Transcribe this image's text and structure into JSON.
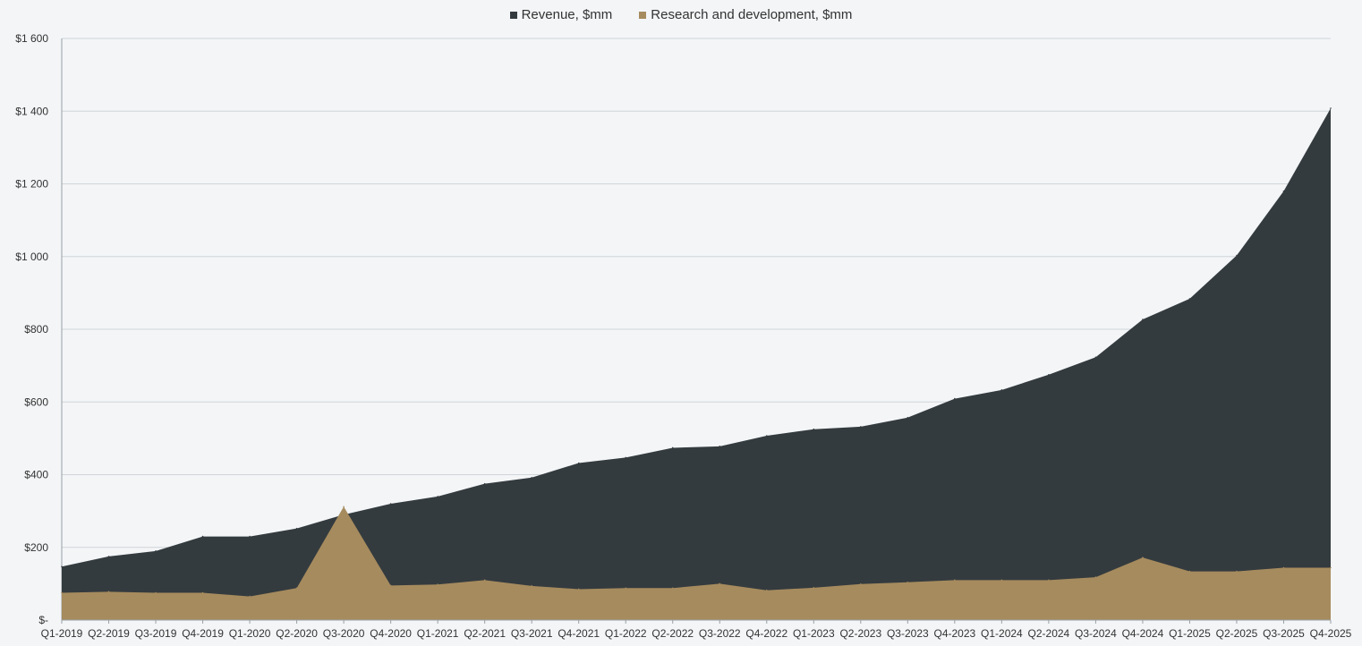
{
  "chart_data": {
    "type": "area",
    "categories": [
      "Q1-2019",
      "Q2-2019",
      "Q3-2019",
      "Q4-2019",
      "Q1-2020",
      "Q2-2020",
      "Q3-2020",
      "Q4-2020",
      "Q1-2021",
      "Q2-2021",
      "Q3-2021",
      "Q4-2021",
      "Q1-2022",
      "Q2-2022",
      "Q3-2022",
      "Q4-2022",
      "Q1-2023",
      "Q2-2023",
      "Q3-2023",
      "Q4-2023",
      "Q1-2024",
      "Q2-2024",
      "Q3-2024",
      "Q4-2024",
      "Q1-2025",
      "Q2-2025",
      "Q3-2025",
      "Q4-2025"
    ],
    "series": [
      {
        "name": "Revenue, $mm",
        "color": "#343b3f",
        "values": [
          147,
          175,
          190,
          230,
          230,
          252,
          290,
          320,
          340,
          375,
          392,
          432,
          447,
          474,
          478,
          507,
          525,
          532,
          557,
          609,
          633,
          675,
          723,
          827,
          884,
          1003,
          1180,
          1408
        ]
      },
      {
        "name": "Research and development, $mm",
        "color": "#a68b5e",
        "values": [
          75,
          78,
          75,
          75,
          65,
          88,
          312,
          95,
          98,
          110,
          94,
          85,
          88,
          88,
          100,
          82,
          89,
          99,
          104,
          110,
          110,
          110,
          118,
          172,
          134,
          134,
          144,
          144
        ]
      }
    ],
    "y_ticks": [
      "$-",
      "$200",
      "$400",
      "$600",
      "$800",
      "$1 000",
      "$1 200",
      "$1 400",
      "$1 600"
    ],
    "ylim": [
      0,
      1600
    ],
    "grid": true,
    "legend_position": "top-center",
    "title": "",
    "xlabel": "",
    "ylabel": ""
  }
}
